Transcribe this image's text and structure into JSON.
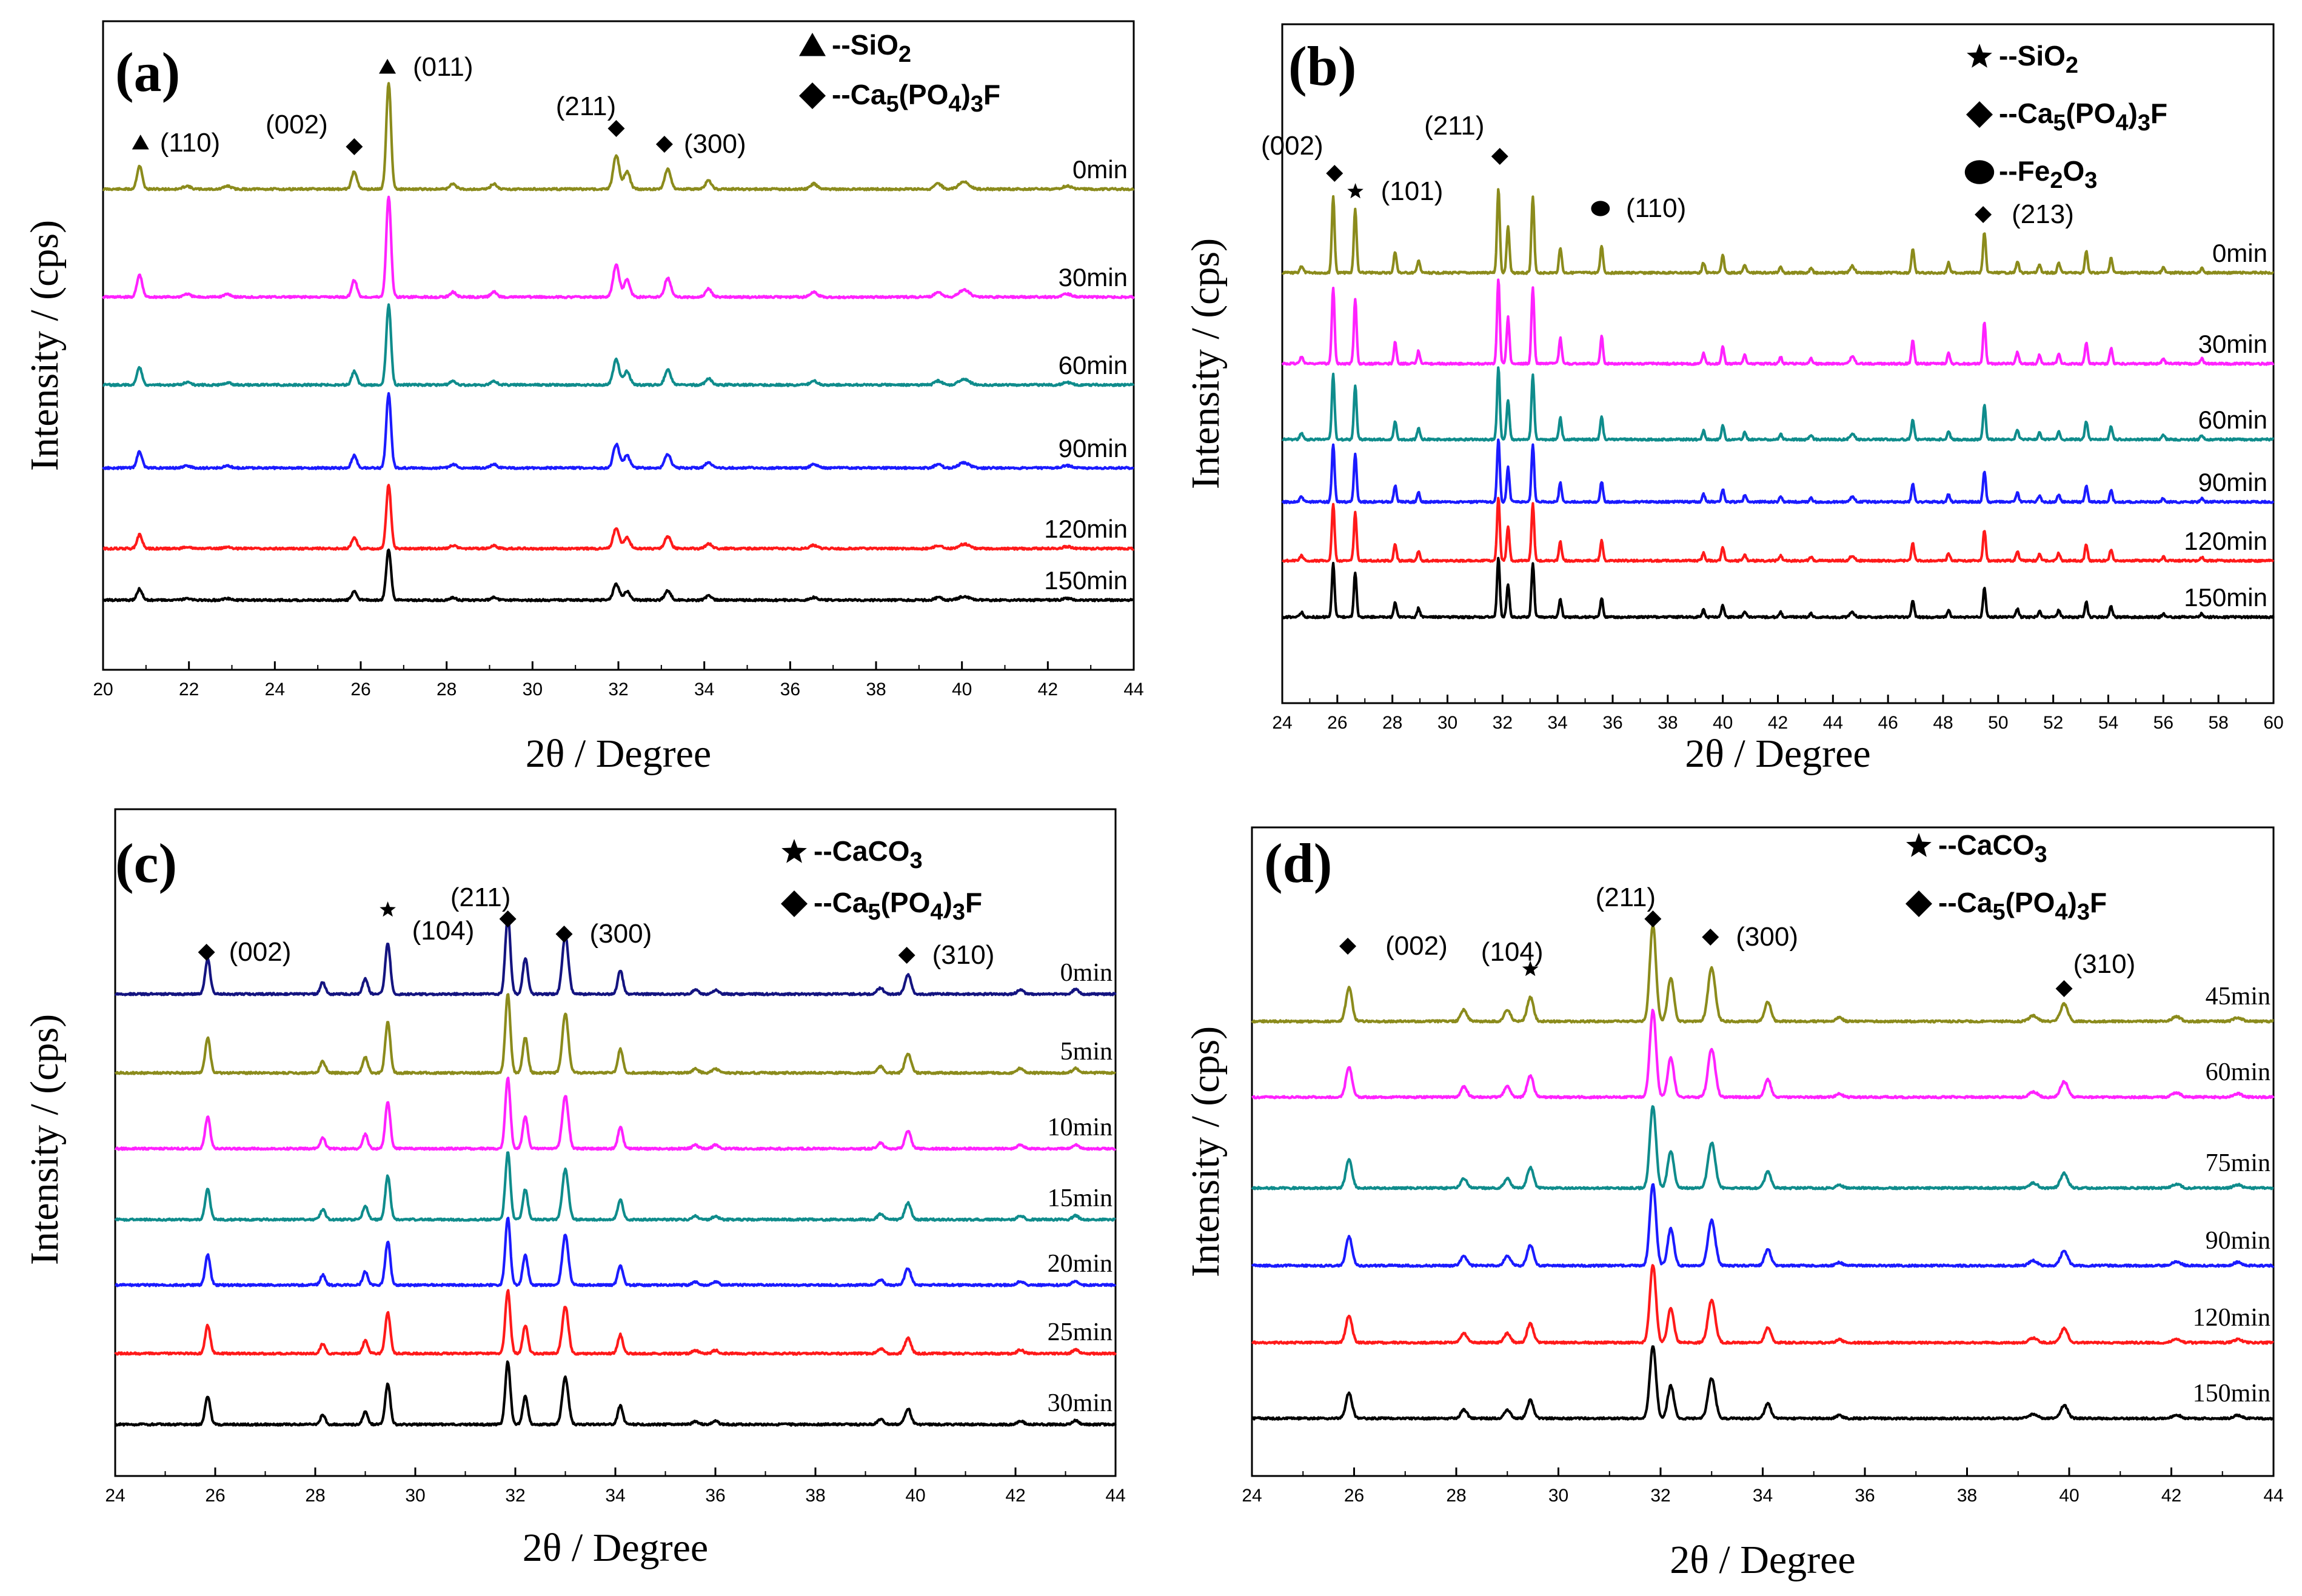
{
  "chart_data": [
    {
      "type": "line",
      "panel": "(a)",
      "xlabel": "2θ / Degree",
      "ylabel": "Intensity / (cps)",
      "xlim": [
        20,
        44
      ],
      "xticks": [
        20,
        22,
        24,
        26,
        28,
        30,
        32,
        34,
        36,
        38,
        40,
        42,
        44
      ],
      "legend": [
        {
          "marker": "triangle",
          "text": "--SiO2"
        },
        {
          "marker": "diamond",
          "text": "--Ca5(PO4)3F"
        }
      ],
      "peak_labels": [
        {
          "marker": "triangle",
          "x": 20.9,
          "text": "(110)"
        },
        {
          "marker": "diamond",
          "x": 25.85,
          "text": "(002)"
        },
        {
          "marker": "triangle",
          "x": 26.65,
          "text": "(011)"
        },
        {
          "marker": "diamond",
          "x": 31.95,
          "text": "(211)"
        },
        {
          "marker": "diamond",
          "x": 33.1,
          "text": "(300)"
        }
      ],
      "peaks": [
        [
          20.85,
          0.22,
          0.06
        ],
        [
          21.95,
          0.03,
          0.08
        ],
        [
          22.9,
          0.03,
          0.08
        ],
        [
          25.85,
          0.17,
          0.06
        ],
        [
          26.65,
          1.0,
          0.055
        ],
        [
          28.15,
          0.05,
          0.07
        ],
        [
          29.1,
          0.05,
          0.07
        ],
        [
          31.95,
          0.32,
          0.07
        ],
        [
          32.2,
          0.17,
          0.07
        ],
        [
          33.15,
          0.19,
          0.07
        ],
        [
          34.1,
          0.08,
          0.07
        ],
        [
          36.55,
          0.05,
          0.08
        ],
        [
          39.45,
          0.05,
          0.08
        ],
        [
          40.05,
          0.07,
          0.12
        ],
        [
          42.45,
          0.03,
          0.1
        ]
      ],
      "series": [
        {
          "name": "0min",
          "color": "#8b8b1c",
          "scale": 1.0
        },
        {
          "name": "30min",
          "color": "#ff22ff",
          "scale": 0.95
        },
        {
          "name": "60min",
          "color": "#0f8c8c",
          "scale": 0.75
        },
        {
          "name": "90min",
          "color": "#1b1bff",
          "scale": 0.7
        },
        {
          "name": "120min",
          "color": "#ff1a1a",
          "scale": 0.6
        },
        {
          "name": "150min",
          "color": "#000000",
          "scale": 0.48
        }
      ]
    },
    {
      "type": "line",
      "panel": "(b)",
      "xlabel": "2θ / Degree",
      "ylabel": "Intensity / (cps)",
      "xlim": [
        24,
        60
      ],
      "xticks": [
        24,
        26,
        28,
        30,
        32,
        34,
        36,
        38,
        40,
        42,
        44,
        46,
        48,
        50,
        52,
        54,
        56,
        58,
        60
      ],
      "legend": [
        {
          "marker": "star",
          "text": "--SiO2"
        },
        {
          "marker": "diamond",
          "text": "--Ca5(PO4)3F"
        },
        {
          "marker": "circle",
          "text": "--Fe2O3"
        }
      ],
      "peak_labels": [
        {
          "marker": "diamond",
          "x": 25.9,
          "text": "(002)"
        },
        {
          "marker": "star",
          "x": 26.7,
          "text": "(101)"
        },
        {
          "marker": "diamond",
          "x": 31.9,
          "text": "(211)"
        },
        {
          "marker": "circle",
          "x": 35.6,
          "text": "(110)"
        },
        {
          "marker": "diamond",
          "x": 49.5,
          "text": "(213)"
        }
      ],
      "peaks": [
        [
          24.7,
          0.08,
          0.06
        ],
        [
          25.85,
          0.9,
          0.05
        ],
        [
          26.65,
          0.75,
          0.05
        ],
        [
          28.1,
          0.25,
          0.05
        ],
        [
          28.95,
          0.15,
          0.05
        ],
        [
          31.85,
          1.0,
          0.05
        ],
        [
          32.2,
          0.55,
          0.05
        ],
        [
          33.1,
          0.9,
          0.05
        ],
        [
          34.1,
          0.3,
          0.05
        ],
        [
          35.6,
          0.32,
          0.05
        ],
        [
          39.3,
          0.12,
          0.05
        ],
        [
          40.0,
          0.2,
          0.05
        ],
        [
          40.8,
          0.1,
          0.05
        ],
        [
          42.1,
          0.08,
          0.05
        ],
        [
          43.2,
          0.06,
          0.05
        ],
        [
          44.7,
          0.08,
          0.08
        ],
        [
          46.9,
          0.28,
          0.05
        ],
        [
          48.2,
          0.12,
          0.05
        ],
        [
          49.5,
          0.48,
          0.05
        ],
        [
          50.7,
          0.14,
          0.05
        ],
        [
          51.5,
          0.1,
          0.05
        ],
        [
          52.2,
          0.12,
          0.05
        ],
        [
          53.2,
          0.25,
          0.05
        ],
        [
          54.1,
          0.18,
          0.05
        ],
        [
          56.0,
          0.06,
          0.05
        ],
        [
          57.4,
          0.06,
          0.05
        ]
      ],
      "series": [
        {
          "name": "0min",
          "color": "#8b8b1c",
          "scale": 1.0
        },
        {
          "name": "30min",
          "color": "#ff22ff",
          "scale": 1.0
        },
        {
          "name": "60min",
          "color": "#0f8c8c",
          "scale": 0.85
        },
        {
          "name": "90min",
          "color": "#1b1bff",
          "scale": 0.75
        },
        {
          "name": "120min",
          "color": "#ff1a1a",
          "scale": 0.75
        },
        {
          "name": "150min",
          "color": "#000000",
          "scale": 0.7
        }
      ]
    },
    {
      "type": "line",
      "panel": "(c)",
      "xlabel": "2θ / Degree",
      "ylabel": "Intensity / (cps)",
      "xlim": [
        24,
        44
      ],
      "xticks": [
        24,
        26,
        28,
        30,
        32,
        34,
        36,
        38,
        40,
        42,
        44
      ],
      "legend": [
        {
          "marker": "star",
          "text": "--CaCO3"
        },
        {
          "marker": "diamond",
          "text": "--Ca5(PO4)3F"
        }
      ],
      "peak_labels": [
        {
          "marker": "diamond",
          "x": 25.85,
          "text": "(002)"
        },
        {
          "marker": "star",
          "x": 29.45,
          "text": "(104)"
        },
        {
          "marker": "diamond",
          "x": 31.85,
          "text": "(211)"
        },
        {
          "marker": "diamond",
          "x": 33.0,
          "text": "(300)"
        },
        {
          "marker": "diamond",
          "x": 39.85,
          "text": "(310)"
        }
      ],
      "peaks": [
        [
          25.85,
          0.45,
          0.05
        ],
        [
          28.15,
          0.15,
          0.05
        ],
        [
          29.0,
          0.2,
          0.05
        ],
        [
          29.45,
          0.65,
          0.05
        ],
        [
          31.85,
          1.0,
          0.05
        ],
        [
          32.2,
          0.45,
          0.05
        ],
        [
          33.0,
          0.75,
          0.06
        ],
        [
          34.1,
          0.3,
          0.05
        ],
        [
          35.6,
          0.05,
          0.06
        ],
        [
          36.0,
          0.05,
          0.06
        ],
        [
          39.3,
          0.08,
          0.06
        ],
        [
          39.85,
          0.25,
          0.06
        ],
        [
          42.1,
          0.06,
          0.06
        ],
        [
          43.2,
          0.06,
          0.06
        ]
      ],
      "series": [
        {
          "name": "0min",
          "color": "#141480",
          "scale": 1.0
        },
        {
          "name": "5min",
          "color": "#8b8b1c",
          "scale": 1.0
        },
        {
          "name": "10min",
          "color": "#ff22ff",
          "scale": 0.9
        },
        {
          "name": "15min",
          "color": "#0f8c8c",
          "scale": 0.85
        },
        {
          "name": "20min",
          "color": "#1b1bff",
          "scale": 0.85
        },
        {
          "name": "25min",
          "color": "#ff1a1a",
          "scale": 0.8
        },
        {
          "name": "30min",
          "color": "#000000",
          "scale": 0.8
        }
      ]
    },
    {
      "type": "line",
      "panel": "(d)",
      "xlabel": "2θ / Degree",
      "ylabel": "Intensity / (cps)",
      "xlim": [
        24,
        44
      ],
      "xticks": [
        24,
        26,
        28,
        30,
        32,
        34,
        36,
        38,
        40,
        42,
        44
      ],
      "legend": [
        {
          "marker": "star",
          "text": "--CaCO3"
        },
        {
          "marker": "diamond",
          "text": "--Ca5(PO4)3F"
        }
      ],
      "peak_labels": [
        {
          "marker": "diamond",
          "x": 25.9,
          "text": "(002)"
        },
        {
          "marker": "star",
          "x": 29.45,
          "text": "(104)"
        },
        {
          "marker": "diamond",
          "x": 31.85,
          "text": "(211)"
        },
        {
          "marker": "diamond",
          "x": 33.0,
          "text": "(300)"
        },
        {
          "marker": "diamond",
          "x": 39.9,
          "text": "(310)"
        }
      ],
      "peaks": [
        [
          25.9,
          0.35,
          0.06
        ],
        [
          28.15,
          0.12,
          0.06
        ],
        [
          29.0,
          0.12,
          0.06
        ],
        [
          29.45,
          0.25,
          0.06
        ],
        [
          31.85,
          1.0,
          0.06
        ],
        [
          32.2,
          0.45,
          0.06
        ],
        [
          33.0,
          0.55,
          0.07
        ],
        [
          34.1,
          0.2,
          0.06
        ],
        [
          35.5,
          0.04,
          0.06
        ],
        [
          39.3,
          0.06,
          0.08
        ],
        [
          39.9,
          0.18,
          0.07
        ],
        [
          42.1,
          0.05,
          0.08
        ],
        [
          43.3,
          0.04,
          0.08
        ]
      ],
      "series": [
        {
          "name": "45min",
          "color": "#8b8b1c",
          "scale": 1.0
        },
        {
          "name": "60min",
          "color": "#ff22ff",
          "scale": 0.9
        },
        {
          "name": "75min",
          "color": "#0f8c8c",
          "scale": 0.85
        },
        {
          "name": "90min",
          "color": "#1b1bff",
          "scale": 0.85
        },
        {
          "name": "120min",
          "color": "#ff1a1a",
          "scale": 0.8
        },
        {
          "name": "150min",
          "color": "#000000",
          "scale": 0.75
        }
      ]
    }
  ]
}
